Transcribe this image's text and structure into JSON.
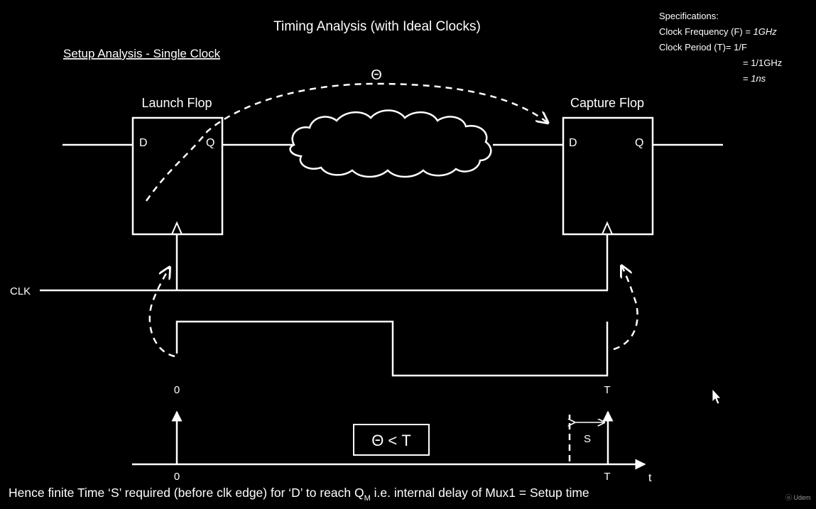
{
  "title": "Timing Analysis (with Ideal Clocks)",
  "subtitle": "Setup Analysis - Single Clock",
  "specifications": {
    "heading": "Specifications:",
    "freq_label": "Clock Frequency (F) = ",
    "freq_value": "1GHz",
    "period_label": "Clock Period (T)= 1/F",
    "period_step": "= 1/1GHz",
    "period_result_prefix": "= ",
    "period_result": "1ns"
  },
  "launch_flop": {
    "label": "Launch Flop",
    "d_pin": "D",
    "q_pin": "Q"
  },
  "capture_flop": {
    "label": "Capture Flop",
    "d_pin": "D",
    "q_pin": "Q"
  },
  "delay_symbol": "Θ",
  "clock_label": "CLK",
  "waveform": {
    "start_label": "0",
    "end_label": "T"
  },
  "timeline": {
    "start_label": "0",
    "end_label": "T",
    "axis_label": "t",
    "setup_label": "S"
  },
  "condition": "Θ < T",
  "footer": {
    "prefix": "Hence finite Time ‘S’ required (before clk edge) for ‘D’ to reach Q",
    "subscript": "M",
    "suffix": " i.e. internal delay of Mux1 = Setup time"
  },
  "watermark": "Udem",
  "colors": {
    "background": "#000000",
    "stroke": "#ffffff"
  }
}
